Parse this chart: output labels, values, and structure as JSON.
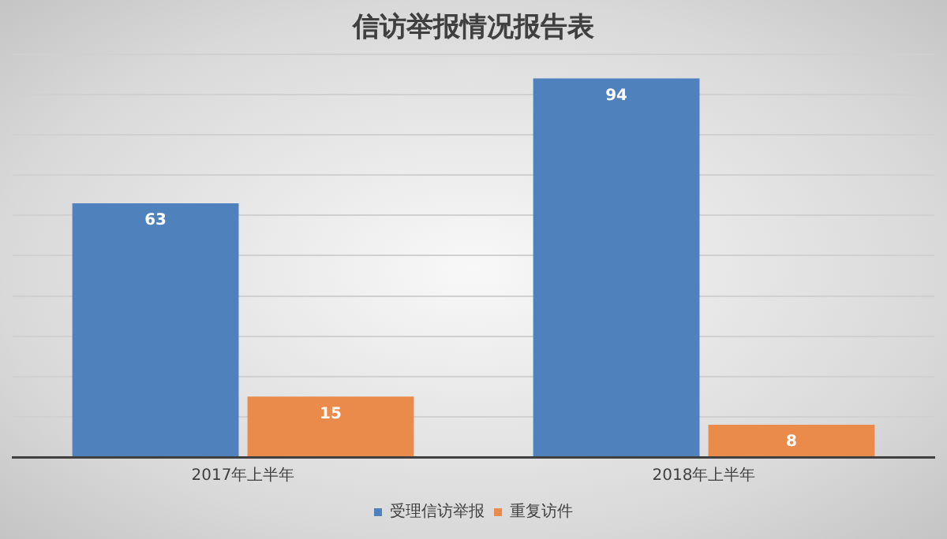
{
  "chart_data": {
    "type": "bar",
    "title": "信访举报情况报告表",
    "categories": [
      "2017年上半年",
      "2018年上半年"
    ],
    "series": [
      {
        "name": "受理信访举报",
        "color": "#4f81bd",
        "values": [
          63,
          94
        ]
      },
      {
        "name": "重复访件",
        "color": "#eb8b4b",
        "values": [
          15,
          8
        ]
      }
    ],
    "ylim": [
      0,
      100
    ],
    "yticks": [
      {
        "value": 0,
        "label": null
      },
      {
        "value": 10,
        "label": null
      },
      {
        "value": 20,
        "label": null
      },
      {
        "value": 30,
        "label": null
      },
      {
        "value": 40,
        "label": null
      },
      {
        "value": 50,
        "label": null
      },
      {
        "value": 60,
        "label": null
      },
      {
        "value": 70,
        "label": null
      },
      {
        "value": 80,
        "label": null
      },
      {
        "value": 90,
        "label": null
      },
      {
        "value": 100,
        "label": null
      }
    ],
    "grid": "y",
    "tick_labels": "x",
    "legend": "bottom",
    "data_labels": true
  }
}
